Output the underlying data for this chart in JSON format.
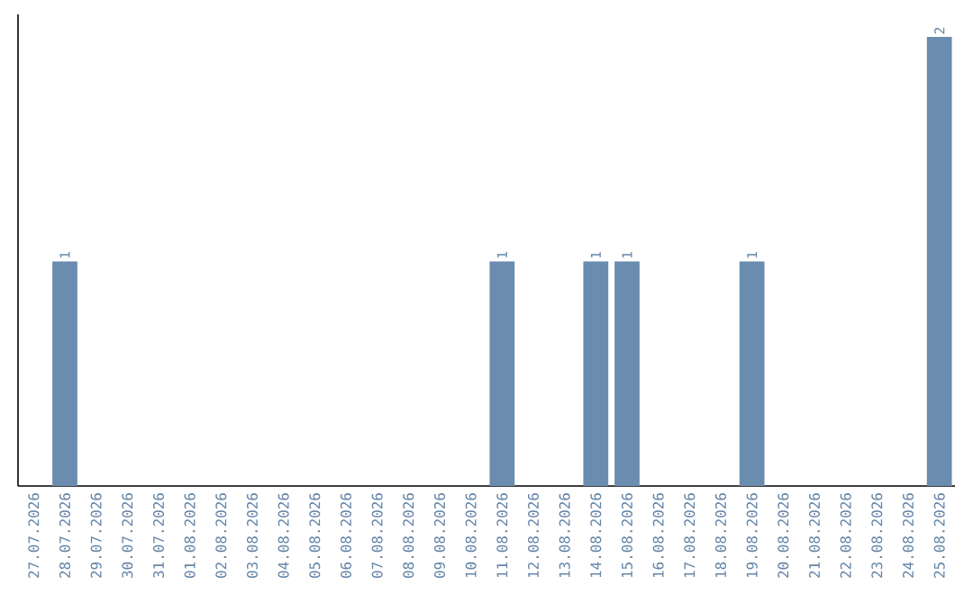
{
  "chart_data": {
    "type": "bar",
    "color": "#6a8cae",
    "categories": [
      "27.07.2026",
      "28.07.2026",
      "29.07.2026",
      "30.07.2026",
      "31.07.2026",
      "01.08.2026",
      "02.08.2026",
      "03.08.2026",
      "04.08.2026",
      "05.08.2026",
      "06.08.2026",
      "07.08.2026",
      "08.08.2026",
      "09.08.2026",
      "10.08.2026",
      "11.08.2026",
      "12.08.2026",
      "13.08.2026",
      "14.08.2026",
      "15.08.2026",
      "16.08.2026",
      "17.08.2026",
      "18.08.2026",
      "19.08.2026",
      "20.08.2026",
      "21.08.2026",
      "22.08.2026",
      "23.08.2026",
      "24.08.2026",
      "25.08.2026"
    ],
    "values": [
      0,
      1,
      0,
      0,
      0,
      0,
      0,
      0,
      0,
      0,
      0,
      0,
      0,
      0,
      0,
      1,
      0,
      0,
      1,
      1,
      0,
      0,
      0,
      1,
      0,
      0,
      0,
      0,
      0,
      2
    ],
    "value_labels": [
      null,
      "1",
      null,
      null,
      null,
      null,
      null,
      null,
      null,
      null,
      null,
      null,
      null,
      null,
      null,
      "1",
      null,
      null,
      "1",
      "1",
      null,
      null,
      null,
      "1",
      null,
      null,
      null,
      null,
      null,
      "2"
    ]
  }
}
